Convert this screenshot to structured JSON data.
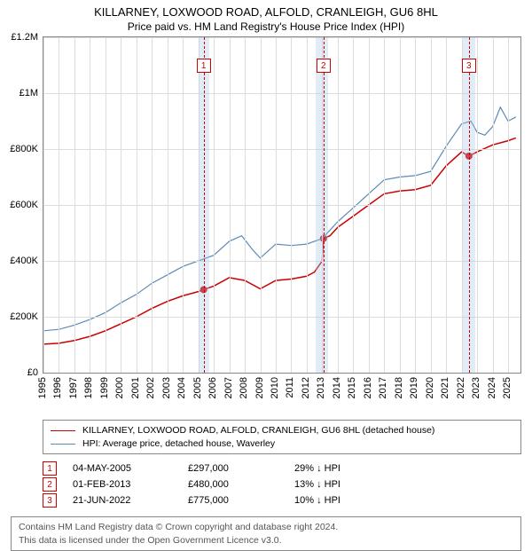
{
  "title": "KILLARNEY, LOXWOOD ROAD, ALFOLD, CRANLEIGH, GU6 8HL",
  "subtitle": "Price paid vs. HM Land Registry's House Price Index (HPI)",
  "chart": {
    "type": "line",
    "background_color": "#ffffff",
    "grid_color": "#dddddd",
    "border_color": "#888888",
    "xlim": [
      1995,
      2025.8
    ],
    "ylim": [
      0,
      1200000
    ],
    "ytick_step": 200000,
    "y_ticks": [
      "£0",
      "£200K",
      "£400K",
      "£600K",
      "£800K",
      "£1M",
      "£1.2M"
    ],
    "x_ticks": [
      "1995",
      "1996",
      "1997",
      "1998",
      "1999",
      "2000",
      "2001",
      "2002",
      "2003",
      "2004",
      "2005",
      "2006",
      "2007",
      "2008",
      "2009",
      "2010",
      "2011",
      "2012",
      "2013",
      "2014",
      "2015",
      "2016",
      "2017",
      "2018",
      "2019",
      "2020",
      "2021",
      "2022",
      "2023",
      "2024",
      "2025"
    ],
    "highlight_bands": [
      {
        "start": 2005.0,
        "end": 2005.7,
        "color": "rgba(173,200,230,0.35)"
      },
      {
        "start": 2012.6,
        "end": 2013.4,
        "color": "rgba(173,200,230,0.35)"
      },
      {
        "start": 2022.1,
        "end": 2022.9,
        "color": "rgba(173,200,230,0.35)"
      }
    ],
    "marker_dashes": [
      {
        "x": 2005.34,
        "color": "#cc0000",
        "label": "1"
      },
      {
        "x": 2013.08,
        "color": "#cc0000",
        "label": "2"
      },
      {
        "x": 2022.47,
        "color": "#cc0000",
        "label": "3"
      }
    ],
    "series": [
      {
        "name": "subject",
        "color": "#cc0000",
        "line_width": 1.5,
        "data": [
          [
            1995,
            102000
          ],
          [
            1996,
            105000
          ],
          [
            1997,
            115000
          ],
          [
            1998,
            130000
          ],
          [
            1999,
            150000
          ],
          [
            2000,
            175000
          ],
          [
            2001,
            200000
          ],
          [
            2002,
            230000
          ],
          [
            2003,
            255000
          ],
          [
            2004,
            275000
          ],
          [
            2005,
            290000
          ],
          [
            2005.34,
            297000
          ],
          [
            2006,
            310000
          ],
          [
            2007,
            340000
          ],
          [
            2008,
            330000
          ],
          [
            2009,
            300000
          ],
          [
            2010,
            330000
          ],
          [
            2011,
            335000
          ],
          [
            2012,
            345000
          ],
          [
            2012.5,
            360000
          ],
          [
            2013.0,
            400000
          ],
          [
            2013.08,
            480000
          ],
          [
            2013.5,
            490000
          ],
          [
            2014,
            520000
          ],
          [
            2015,
            560000
          ],
          [
            2016,
            600000
          ],
          [
            2017,
            640000
          ],
          [
            2018,
            650000
          ],
          [
            2019,
            655000
          ],
          [
            2020,
            670000
          ],
          [
            2021,
            740000
          ],
          [
            2022,
            790000
          ],
          [
            2022.47,
            775000
          ],
          [
            2023,
            790000
          ],
          [
            2024,
            815000
          ],
          [
            2025,
            830000
          ],
          [
            2025.5,
            840000
          ]
        ],
        "points": [
          {
            "x": 2005.34,
            "y": 297000
          },
          {
            "x": 2013.08,
            "y": 480000
          },
          {
            "x": 2022.47,
            "y": 775000
          }
        ]
      },
      {
        "name": "hpi",
        "color": "#5b8bb7",
        "line_width": 1.2,
        "data": [
          [
            1995,
            150000
          ],
          [
            1996,
            155000
          ],
          [
            1997,
            170000
          ],
          [
            1998,
            190000
          ],
          [
            1999,
            215000
          ],
          [
            2000,
            250000
          ],
          [
            2001,
            280000
          ],
          [
            2002,
            320000
          ],
          [
            2003,
            350000
          ],
          [
            2004,
            380000
          ],
          [
            2005,
            400000
          ],
          [
            2006,
            420000
          ],
          [
            2007,
            470000
          ],
          [
            2007.8,
            490000
          ],
          [
            2008.5,
            440000
          ],
          [
            2009,
            410000
          ],
          [
            2010,
            460000
          ],
          [
            2011,
            455000
          ],
          [
            2012,
            460000
          ],
          [
            2013,
            480000
          ],
          [
            2014,
            540000
          ],
          [
            2015,
            590000
          ],
          [
            2016,
            640000
          ],
          [
            2017,
            690000
          ],
          [
            2018,
            700000
          ],
          [
            2019,
            705000
          ],
          [
            2020,
            720000
          ],
          [
            2021,
            810000
          ],
          [
            2022,
            890000
          ],
          [
            2022.6,
            900000
          ],
          [
            2023,
            860000
          ],
          [
            2023.5,
            850000
          ],
          [
            2024,
            880000
          ],
          [
            2024.5,
            950000
          ],
          [
            2025,
            900000
          ],
          [
            2025.5,
            915000
          ]
        ]
      }
    ]
  },
  "legend": {
    "items": [
      {
        "color": "#cc0000",
        "width": 1.8,
        "label": "KILLARNEY, LOXWOOD ROAD, ALFOLD, CRANLEIGH, GU6 8HL (detached house)"
      },
      {
        "color": "#5b8bb7",
        "width": 1.4,
        "label": "HPI: Average price, detached house, Waverley"
      }
    ]
  },
  "transactions": [
    {
      "n": "1",
      "date": "04-MAY-2005",
      "price": "£297,000",
      "diff": "29% ↓ HPI"
    },
    {
      "n": "2",
      "date": "01-FEB-2013",
      "price": "£480,000",
      "diff": "13% ↓ HPI"
    },
    {
      "n": "3",
      "date": "21-JUN-2022",
      "price": "£775,000",
      "diff": "10% ↓ HPI"
    }
  ],
  "attribution": {
    "line1": "Contains HM Land Registry data © Crown copyright and database right 2024.",
    "line2": "This data is licensed under the Open Government Licence v3.0."
  }
}
